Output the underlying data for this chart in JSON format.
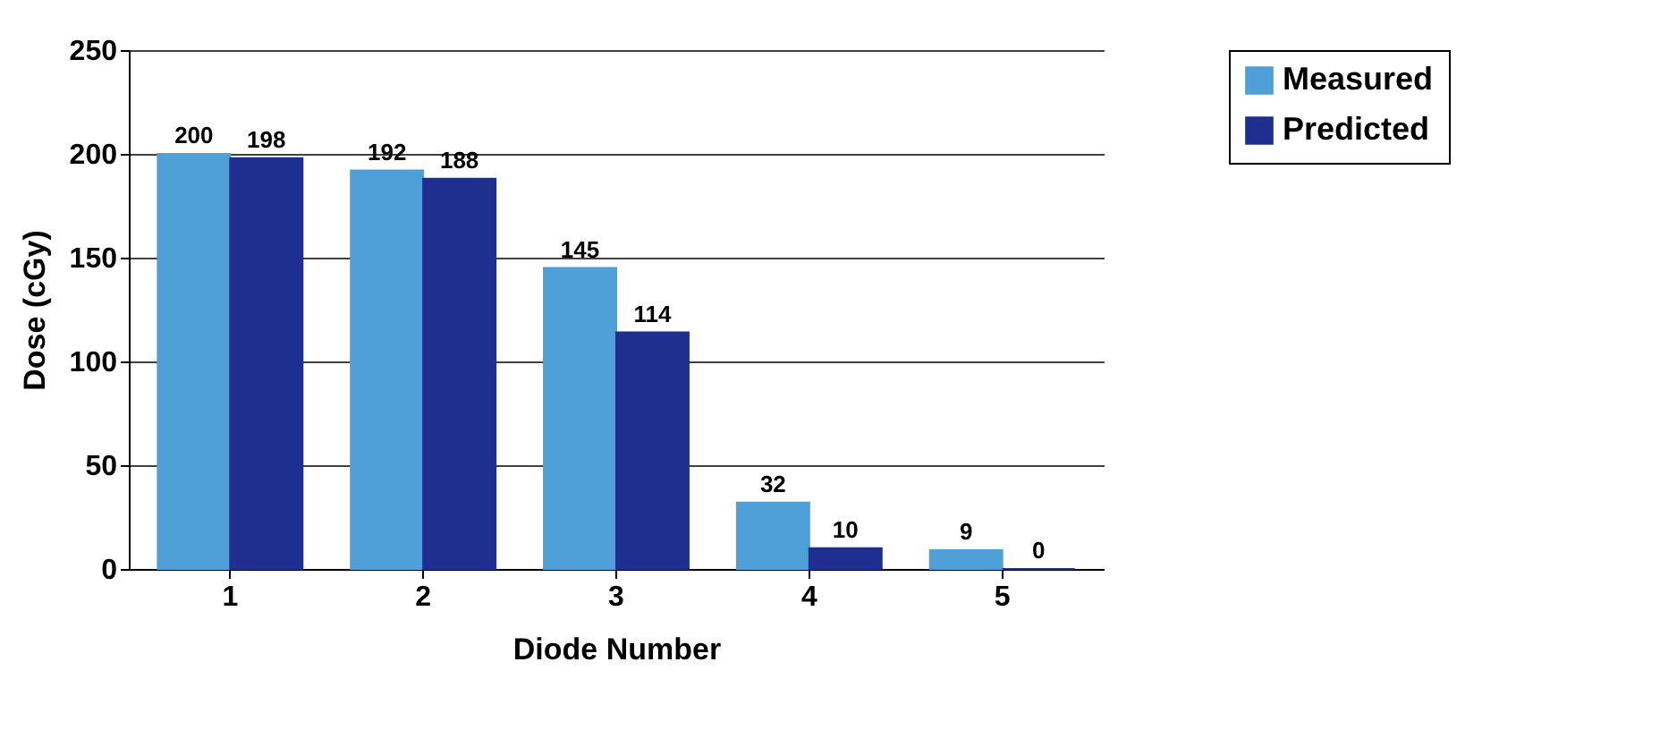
{
  "chart_data": {
    "type": "bar",
    "xlabel": "Diode Number",
    "ylabel": "Dose (cGy)",
    "categories": [
      "1",
      "2",
      "3",
      "4",
      "5"
    ],
    "series": [
      {
        "name": "Measured",
        "color": "#4f9fd8",
        "values": [
          200,
          192,
          145,
          32,
          9
        ]
      },
      {
        "name": "Predicted",
        "color": "#1f2f8f",
        "values": [
          198,
          188,
          114,
          10,
          0
        ]
      }
    ],
    "ylim": [
      0,
      250
    ],
    "yticks": [
      0,
      50,
      100,
      150,
      200,
      250
    ],
    "grid": "y",
    "legend": "right",
    "data_labels": true
  }
}
